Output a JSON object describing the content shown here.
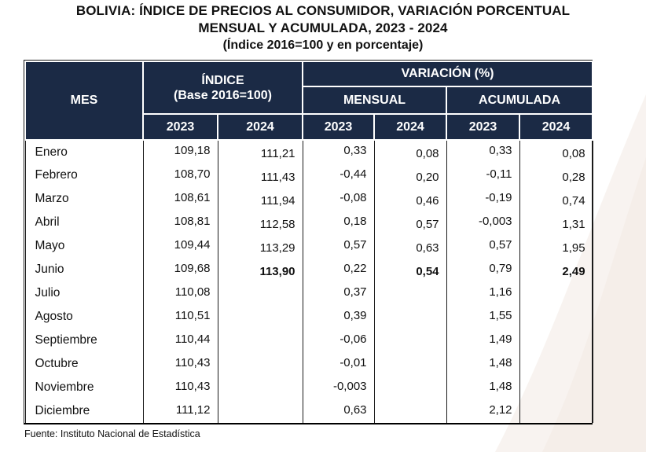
{
  "title": {
    "line1": "BOLIVIA: ÍNDICE DE PRECIOS AL CONSUMIDOR, VARIACIÓN PORCENTUAL",
    "line2": "MENSUAL Y ACUMULADA, 2023 - 2024",
    "subtitle": "(Índice 2016=100 y en porcentaje)"
  },
  "table": {
    "headers": {
      "mes": "MES",
      "indice_title": "ÍNDICE",
      "indice_base": "(Base 2016=100)",
      "variacion": "VARIACIÓN (%)",
      "mensual": "MENSUAL",
      "acumulada": "ACUMULADA",
      "year_2023": "2023",
      "year_2024": "2024"
    },
    "rows": [
      {
        "mes": "Enero",
        "indice_2023": "109,18",
        "indice_2024": "111,21",
        "mensual_2023": "0,33",
        "mensual_2024": "0,08",
        "acumulada_2023": "0,33",
        "acumulada_2024": "0,08",
        "bold": false
      },
      {
        "mes": "Febrero",
        "indice_2023": "108,70",
        "indice_2024": "111,43",
        "mensual_2023": "-0,44",
        "mensual_2024": "0,20",
        "acumulada_2023": "-0,11",
        "acumulada_2024": "0,28",
        "bold": false
      },
      {
        "mes": "Marzo",
        "indice_2023": "108,61",
        "indice_2024": "111,94",
        "mensual_2023": "-0,08",
        "mensual_2024": "0,46",
        "acumulada_2023": "-0,19",
        "acumulada_2024": "0,74",
        "bold": false
      },
      {
        "mes": "Abril",
        "indice_2023": "108,81",
        "indice_2024": "112,58",
        "mensual_2023": "0,18",
        "mensual_2024": "0,57",
        "acumulada_2023": "-0,003",
        "acumulada_2024": "1,31",
        "bold": false
      },
      {
        "mes": "Mayo",
        "indice_2023": "109,44",
        "indice_2024": "113,29",
        "mensual_2023": "0,57",
        "mensual_2024": "0,63",
        "acumulada_2023": "0,57",
        "acumulada_2024": "1,95",
        "bold": false
      },
      {
        "mes": "Junio",
        "indice_2023": "109,68",
        "indice_2024": "113,90",
        "mensual_2023": "0,22",
        "mensual_2024": "0,54",
        "acumulada_2023": "0,79",
        "acumulada_2024": "2,49",
        "bold": true
      },
      {
        "mes": "Julio",
        "indice_2023": "110,08",
        "indice_2024": "",
        "mensual_2023": "0,37",
        "mensual_2024": "",
        "acumulada_2023": "1,16",
        "acumulada_2024": "",
        "bold": false
      },
      {
        "mes": "Agosto",
        "indice_2023": "110,51",
        "indice_2024": "",
        "mensual_2023": "0,39",
        "mensual_2024": "",
        "acumulada_2023": "1,55",
        "acumulada_2024": "",
        "bold": false
      },
      {
        "mes": "Septiembre",
        "indice_2023": "110,44",
        "indice_2024": "",
        "mensual_2023": "-0,06",
        "mensual_2024": "",
        "acumulada_2023": "1,49",
        "acumulada_2024": "",
        "bold": false
      },
      {
        "mes": "Octubre",
        "indice_2023": "110,43",
        "indice_2024": "",
        "mensual_2023": "-0,01",
        "mensual_2024": "",
        "acumulada_2023": "1,48",
        "acumulada_2024": "",
        "bold": false
      },
      {
        "mes": "Noviembre",
        "indice_2023": "110,43",
        "indice_2024": "",
        "mensual_2023": "-0,003",
        "mensual_2024": "",
        "acumulada_2023": "1,48",
        "acumulada_2024": "",
        "bold": false
      },
      {
        "mes": "Diciembre",
        "indice_2023": "111,12",
        "indice_2024": "",
        "mensual_2023": "0,63",
        "mensual_2024": "",
        "acumulada_2023": "2,12",
        "acumulada_2024": "",
        "bold": false
      }
    ]
  },
  "footer": {
    "source": "Fuente: Instituto Nacional de Estadística"
  },
  "colors": {
    "header_bg": "#1b2a45",
    "border": "#1a1a1a",
    "watermark": "#f3e9e4"
  },
  "chart_data": {
    "type": "table",
    "title": "BOLIVIA: ÍNDICE DE PRECIOS AL CONSUMIDOR, VARIACIÓN PORCENTUAL MENSUAL Y ACUMULADA, 2023 - 2024 (Índice 2016=100 y en porcentaje)",
    "columns": [
      "MES",
      "ÍNDICE (Base 2016=100) 2023",
      "ÍNDICE (Base 2016=100) 2024",
      "VARIACIÓN (%) MENSUAL 2023",
      "VARIACIÓN (%) MENSUAL 2024",
      "VARIACIÓN (%) ACUMULADA 2023",
      "VARIACIÓN (%) ACUMULADA 2024"
    ],
    "rows": [
      [
        "Enero",
        "109,18",
        "111,21",
        "0,33",
        "0,08",
        "0,33",
        "0,08"
      ],
      [
        "Febrero",
        "108,70",
        "111,43",
        "-0,44",
        "0,20",
        "-0,11",
        "0,28"
      ],
      [
        "Marzo",
        "108,61",
        "111,94",
        "-0,08",
        "0,46",
        "-0,19",
        "0,74"
      ],
      [
        "Abril",
        "108,81",
        "112,58",
        "0,18",
        "0,57",
        "-0,003",
        "1,31"
      ],
      [
        "Mayo",
        "109,44",
        "113,29",
        "0,57",
        "0,63",
        "0,57",
        "1,95"
      ],
      [
        "Junio",
        "109,68",
        "113,90",
        "0,22",
        "0,54",
        "0,79",
        "2,49"
      ],
      [
        "Julio",
        "110,08",
        "",
        "0,37",
        "",
        "1,16",
        ""
      ],
      [
        "Agosto",
        "110,51",
        "",
        "0,39",
        "",
        "1,55",
        ""
      ],
      [
        "Septiembre",
        "110,44",
        "",
        "-0,06",
        "",
        "1,49",
        ""
      ],
      [
        "Octubre",
        "110,43",
        "",
        "-0,01",
        "",
        "1,48",
        ""
      ],
      [
        "Noviembre",
        "110,43",
        "",
        "-0,003",
        "",
        "1,48",
        ""
      ],
      [
        "Diciembre",
        "111,12",
        "",
        "0,63",
        "",
        "2,12",
        ""
      ]
    ],
    "source": "Fuente: Instituto Nacional de Estadística"
  }
}
